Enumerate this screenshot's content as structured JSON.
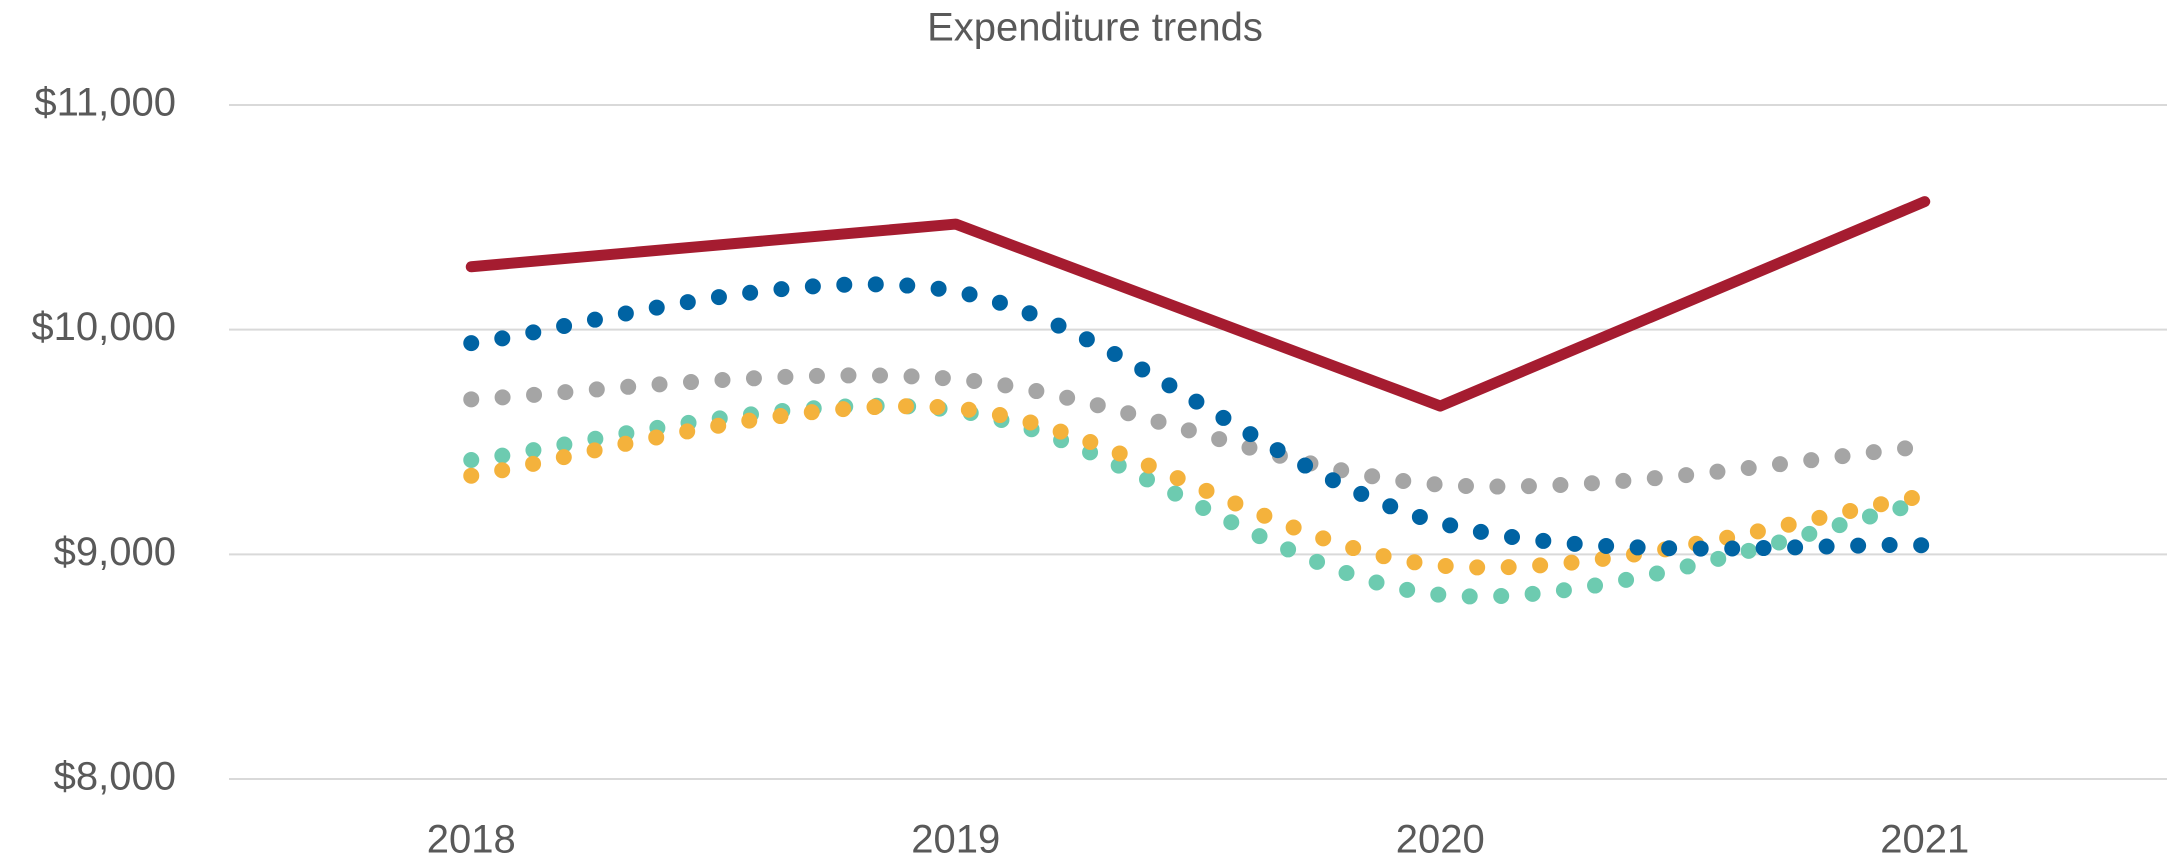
{
  "chart_data": {
    "type": "line",
    "title": "Expenditure trends",
    "categories": [
      "2018",
      "2019",
      "2020",
      "2021"
    ],
    "series": [
      {
        "color": "#a51c30",
        "style": "solid",
        "values": [
          10280,
          10470,
          9660,
          10570
        ]
      },
      {
        "color": "#0063a3",
        "style": "dotted",
        "values": [
          9940,
          10170,
          9140,
          9040
        ]
      },
      {
        "color": "#a5a5a5",
        "style": "dotted",
        "values": [
          9690,
          9780,
          9310,
          9480
        ]
      },
      {
        "color": "#f4b23c",
        "style": "dotted",
        "values": [
          9350,
          9650,
          8950,
          9260
        ]
      },
      {
        "color": "#6dcbb0",
        "style": "dotted",
        "values": [
          9420,
          9640,
          8820,
          9230
        ]
      }
    ],
    "ylim": [
      8000,
      11000
    ],
    "yticks": [
      {
        "value": 8000,
        "label": "$8,000"
      },
      {
        "value": 9000,
        "label": "$9,000"
      },
      {
        "value": 10000,
        "label": "$10,000"
      },
      {
        "value": 11000,
        "label": "$11,000"
      }
    ],
    "grid": true
  }
}
